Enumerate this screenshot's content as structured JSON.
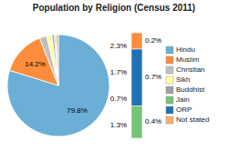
{
  "chart_data": [
    {
      "type": "pie",
      "title": "Population by Religion (Census 2011)",
      "categories": [
        "Hindu",
        "Muslim",
        "Christian",
        "Sikh",
        "Buddhist",
        "Jain",
        "ORP",
        "Not stated"
      ],
      "values": [
        79.8,
        14.2,
        2.3,
        1.7,
        0.7,
        0.4,
        0.2,
        0.7
      ],
      "colors": [
        "#6baed6",
        "#fd8d3c",
        "#c0c0c0",
        "#ffffaa",
        "#a0a0a0",
        "#74c476",
        "#2171b5",
        "#fdae6b"
      ],
      "value_labels": [
        "79.8%",
        "14.2%",
        "2.3%",
        "1.7%",
        "0.7%",
        null,
        null,
        null
      ],
      "data_labels": true,
      "legend": "right"
    },
    {
      "type": "bar",
      "stacked": true,
      "values": [
        0.4,
        0.7,
        0.2
      ],
      "colors": [
        "#74c476",
        "#2171b5",
        "#fd8d3c"
      ],
      "value_labels": [
        "0.4%",
        "0.7%",
        "0.2%"
      ],
      "data_labels": true,
      "total": 1.3,
      "total_label": "1.3%",
      "tick_labels": false
    }
  ]
}
